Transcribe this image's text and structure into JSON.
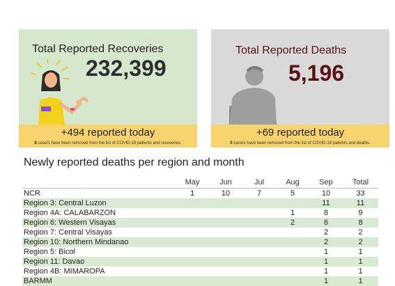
{
  "recoveries": {
    "title": "Total Reported Recoveries",
    "total": "232,399",
    "today": "+494 reported today",
    "note_count": "8",
    "note_text": " case/s have been removed from the list of COVID-19 patients and recoveries."
  },
  "deaths": {
    "title": "Total Reported Deaths",
    "total": "5,196",
    "today": "+69 reported today",
    "note_count": "0",
    "note_text": " case/s have been removed from the list of COVID-19 patients and deaths."
  },
  "table": {
    "title": "Newly reported deaths per region and month",
    "columns": [
      "",
      "May",
      "Jun",
      "Jul",
      "Aug",
      "Sep",
      "Total"
    ],
    "rows": [
      [
        "NCR",
        "1",
        "10",
        "7",
        "5",
        "10",
        "33"
      ],
      [
        "Region 3: Central Luzon",
        "",
        "",
        "",
        "",
        "11",
        "11"
      ],
      [
        "Region 4A: CALABARZON",
        "",
        "",
        "",
        "1",
        "8",
        "9"
      ],
      [
        "Region 6: Western Visayas",
        "",
        "",
        "",
        "2",
        "6",
        "8"
      ],
      [
        "Region 7: Central Visayas",
        "",
        "",
        "",
        "",
        "2",
        "2"
      ],
      [
        "Region 10: Northern Mindanao",
        "",
        "",
        "",
        "",
        "2",
        "2"
      ],
      [
        "Region 5: Bicol",
        "",
        "",
        "",
        "",
        "1",
        "1"
      ],
      [
        "Region 11: Davao",
        "",
        "",
        "",
        "",
        "1",
        "1"
      ],
      [
        "Region 4B: MIMAROPA",
        "",
        "",
        "",
        "",
        "1",
        "1"
      ],
      [
        "BARMM",
        "",
        "",
        "",
        "",
        "1",
        "1"
      ]
    ]
  },
  "colors": {
    "recoveries_bg": "#d5e8cd",
    "deaths_bg": "#d9d9d9",
    "band": "#f6d36c",
    "deaths_accent": "#5a1111",
    "row_stripe": "#d9ead3"
  }
}
